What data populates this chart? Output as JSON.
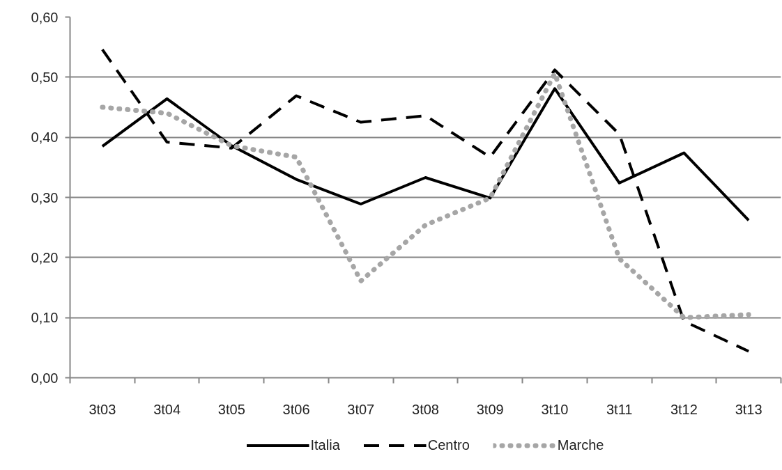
{
  "chart_data": {
    "type": "line",
    "categories": [
      "3t03",
      "3t04",
      "3t05",
      "3t06",
      "3t07",
      "3t08",
      "3t09",
      "3t10",
      "3t11",
      "3t12",
      "3t13"
    ],
    "series": [
      {
        "name": "Italia",
        "color": "#000000",
        "line_style": "solid",
        "values": [
          0.385,
          0.464,
          0.386,
          0.33,
          0.289,
          0.333,
          0.299,
          0.481,
          0.324,
          0.374,
          0.262
        ]
      },
      {
        "name": "Centro",
        "color": "#000000",
        "line_style": "dashed",
        "values": [
          0.546,
          0.392,
          0.382,
          0.469,
          0.425,
          0.436,
          0.367,
          0.512,
          0.405,
          0.094,
          0.044
        ]
      },
      {
        "name": "Marche",
        "color": "#a6a6a6",
        "line_style": "dotted",
        "values": [
          0.45,
          0.44,
          0.386,
          0.367,
          0.161,
          0.254,
          0.299,
          0.506,
          0.198,
          0.1,
          0.105
        ]
      }
    ],
    "ylim": [
      0,
      0.6
    ],
    "yticks": [
      {
        "value": 0,
        "label": "0,00"
      },
      {
        "value": 0.1,
        "label": "0,10"
      },
      {
        "value": 0.2,
        "label": "0,20"
      },
      {
        "value": 0.3,
        "label": "0,30"
      },
      {
        "value": 0.4,
        "label": "0,40"
      },
      {
        "value": 0.5,
        "label": "0,50"
      },
      {
        "value": 0.6,
        "label": "0,60"
      }
    ],
    "grid": "y",
    "legend": "bottom"
  }
}
